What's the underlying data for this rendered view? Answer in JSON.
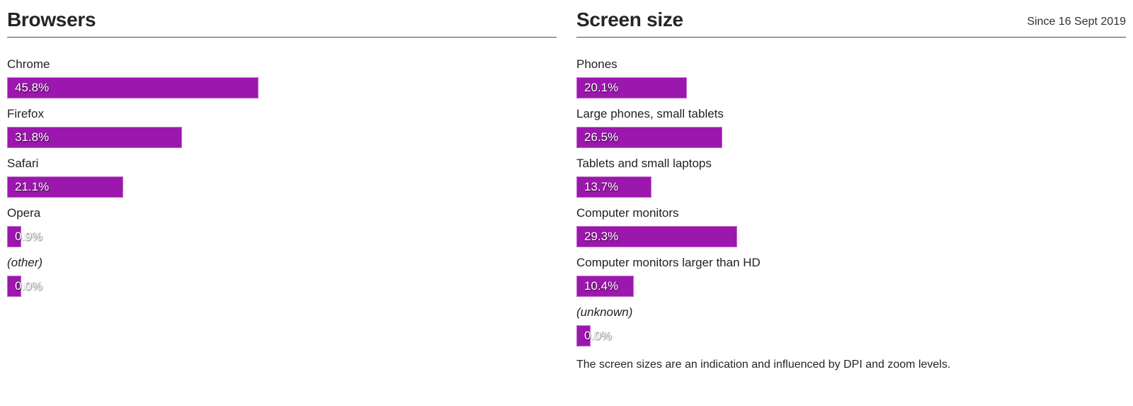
{
  "colors": {
    "bar_fill": "#9c17ad",
    "bar_border": "#c36ecf",
    "bar_text": "#ffffff",
    "heading_text": "#252525",
    "label_text": "#222222",
    "divider": "#4d4d4d",
    "background": "#ffffff"
  },
  "panels": [
    {
      "title": "Browsers",
      "rows": [
        {
          "label": "Chrome",
          "value": "45.8%",
          "pct": 45.8,
          "italic": false
        },
        {
          "label": "Firefox",
          "value": "31.8%",
          "pct": 31.8,
          "italic": false
        },
        {
          "label": "Safari",
          "value": "21.1%",
          "pct": 21.1,
          "italic": false
        },
        {
          "label": "Opera",
          "value": "0.9%",
          "pct": 0.9,
          "italic": false
        },
        {
          "label": "(other)",
          "value": "0.0%",
          "pct": 0.0,
          "italic": true
        }
      ]
    },
    {
      "title": "Screen size",
      "subtitle": "Since 16 Sept 2019",
      "rows": [
        {
          "label": "Phones",
          "value": "20.1%",
          "pct": 20.1,
          "italic": false
        },
        {
          "label": "Large phones, small tablets",
          "value": "26.5%",
          "pct": 26.5,
          "italic": false
        },
        {
          "label": "Tablets and small laptops",
          "value": "13.7%",
          "pct": 13.7,
          "italic": false
        },
        {
          "label": "Computer monitors",
          "value": "29.3%",
          "pct": 29.3,
          "italic": false
        },
        {
          "label": "Computer monitors larger than HD",
          "value": "10.4%",
          "pct": 10.4,
          "italic": false
        },
        {
          "label": "(unknown)",
          "value": "0.0%",
          "pct": 0.0,
          "italic": true
        }
      ],
      "footnote": "The screen sizes are an indication and influenced by DPI and zoom levels."
    }
  ],
  "chart_data": [
    {
      "type": "bar",
      "orientation": "horizontal",
      "title": "Browsers",
      "categories": [
        "Chrome",
        "Firefox",
        "Safari",
        "Opera",
        "(other)"
      ],
      "values": [
        45.8,
        31.8,
        21.1,
        0.9,
        0.0
      ],
      "unit": "%",
      "xlabel": "",
      "ylabel": "",
      "xlim": [
        0,
        100
      ],
      "grid": false,
      "legend": false,
      "bar_color": "#9c17ad",
      "value_labels": [
        "45.8%",
        "31.8%",
        "21.1%",
        "0.9%",
        "0.0%"
      ]
    },
    {
      "type": "bar",
      "orientation": "horizontal",
      "title": "Screen size",
      "subtitle": "Since 16 Sept 2019",
      "categories": [
        "Phones",
        "Large phones, small tablets",
        "Tablets and small laptops",
        "Computer monitors",
        "Computer monitors larger than HD",
        "(unknown)"
      ],
      "values": [
        20.1,
        26.5,
        13.7,
        29.3,
        10.4,
        0.0
      ],
      "unit": "%",
      "xlabel": "",
      "ylabel": "",
      "xlim": [
        0,
        100
      ],
      "grid": false,
      "legend": false,
      "bar_color": "#9c17ad",
      "value_labels": [
        "20.1%",
        "26.5%",
        "13.7%",
        "29.3%",
        "10.4%",
        "0.0%"
      ],
      "annotation": "The screen sizes are an indication and influenced by DPI and zoom levels."
    }
  ]
}
